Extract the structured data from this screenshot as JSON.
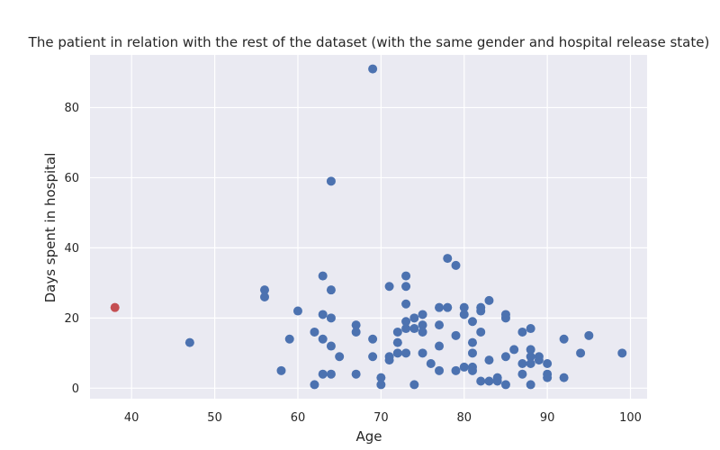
{
  "chart_data": {
    "type": "scatter",
    "title": "The patient in relation with the rest of the dataset (with the same gender and hospital release state)",
    "xlabel": "Age",
    "ylabel": "Days spent in hospital",
    "xlim": [
      35,
      102
    ],
    "ylim": [
      -3,
      95
    ],
    "xticks": [
      40,
      50,
      60,
      70,
      80,
      90,
      100
    ],
    "yticks": [
      0,
      20,
      40,
      60,
      80
    ],
    "grid": true,
    "colors": {
      "background": "#eaeaf2",
      "grid": "#ffffff",
      "dataset": "#4c72b0",
      "patient": "#c44e52"
    },
    "series": [
      {
        "role": "dataset",
        "points": [
          [
            47,
            13
          ],
          [
            56,
            28
          ],
          [
            56,
            26
          ],
          [
            58,
            5
          ],
          [
            59,
            14
          ],
          [
            60,
            22
          ],
          [
            62,
            16
          ],
          [
            62,
            1
          ],
          [
            63,
            32
          ],
          [
            63,
            21
          ],
          [
            63,
            14
          ],
          [
            63,
            4
          ],
          [
            64,
            59
          ],
          [
            64,
            28
          ],
          [
            64,
            20
          ],
          [
            64,
            12
          ],
          [
            64,
            4
          ],
          [
            65,
            9
          ],
          [
            67,
            18
          ],
          [
            67,
            16
          ],
          [
            67,
            4
          ],
          [
            69,
            91
          ],
          [
            69,
            14
          ],
          [
            69,
            9
          ],
          [
            70,
            3
          ],
          [
            70,
            1
          ],
          [
            71,
            29
          ],
          [
            71,
            9
          ],
          [
            71,
            8
          ],
          [
            72,
            16
          ],
          [
            72,
            13
          ],
          [
            72,
            10
          ],
          [
            73,
            32
          ],
          [
            73,
            29
          ],
          [
            73,
            24
          ],
          [
            73,
            19
          ],
          [
            73,
            17
          ],
          [
            73,
            10
          ],
          [
            74,
            20
          ],
          [
            74,
            17
          ],
          [
            74,
            1
          ],
          [
            75,
            21
          ],
          [
            75,
            18
          ],
          [
            75,
            16
          ],
          [
            75,
            10
          ],
          [
            76,
            7
          ],
          [
            77,
            23
          ],
          [
            77,
            18
          ],
          [
            77,
            12
          ],
          [
            77,
            5
          ],
          [
            78,
            37
          ],
          [
            78,
            23
          ],
          [
            79,
            35
          ],
          [
            79,
            15
          ],
          [
            79,
            5
          ],
          [
            80,
            23
          ],
          [
            80,
            21
          ],
          [
            80,
            6
          ],
          [
            81,
            19
          ],
          [
            81,
            13
          ],
          [
            81,
            10
          ],
          [
            81,
            6
          ],
          [
            81,
            5
          ],
          [
            82,
            23
          ],
          [
            82,
            22
          ],
          [
            82,
            16
          ],
          [
            82,
            2
          ],
          [
            83,
            25
          ],
          [
            83,
            8
          ],
          [
            83,
            2
          ],
          [
            84,
            3
          ],
          [
            84,
            2
          ],
          [
            85,
            21
          ],
          [
            85,
            20
          ],
          [
            85,
            9
          ],
          [
            85,
            1
          ],
          [
            86,
            11
          ],
          [
            87,
            16
          ],
          [
            87,
            7
          ],
          [
            87,
            4
          ],
          [
            88,
            17
          ],
          [
            88,
            11
          ],
          [
            88,
            9
          ],
          [
            88,
            7
          ],
          [
            88,
            1
          ],
          [
            89,
            9
          ],
          [
            89,
            8
          ],
          [
            90,
            7
          ],
          [
            90,
            4
          ],
          [
            90,
            3
          ],
          [
            92,
            14
          ],
          [
            92,
            3
          ],
          [
            94,
            10
          ],
          [
            95,
            15
          ],
          [
            99,
            10
          ]
        ]
      },
      {
        "role": "patient",
        "points": [
          [
            38,
            23
          ]
        ]
      }
    ]
  }
}
